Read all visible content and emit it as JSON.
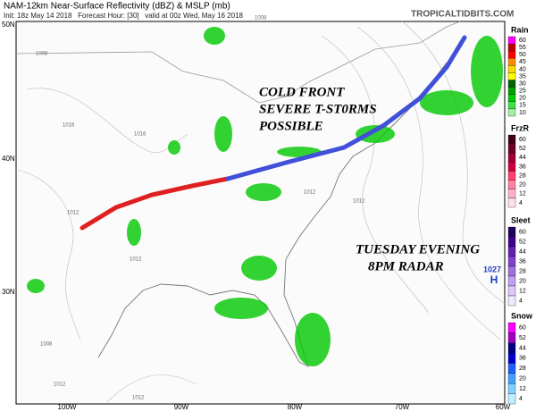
{
  "header": {
    "title": "NAM-12km Near-Surface Reflectivity (dBZ) & MSLP (mb)",
    "subtitle": "Init: 18z May 14 2018   Forecast Hour: [30]   valid at 00z Wed, May 16 2018",
    "site": "TROPICALTIDBITS.COM"
  },
  "map": {
    "lat_labels": [
      "50N",
      "40N",
      "30N"
    ],
    "lon_labels": [
      "100W",
      "90W",
      "80W",
      "70W",
      "60W"
    ],
    "annotations": [
      "COLD FRONT",
      "SEVERE T-ST0RMS",
      "POSSIBLE",
      "TUESDAY EVENING",
      "8PM RADAR"
    ],
    "high": {
      "pressure": "1027",
      "label": "H"
    },
    "isobar_labels": [
      "1008",
      "1012",
      "1016",
      "1016",
      "1012",
      "1012",
      "1008",
      "1012",
      "1012",
      "1008",
      "1012"
    ]
  },
  "legend": [
    {
      "name": "Rain",
      "ticks": [
        "60",
        "55",
        "50",
        "45",
        "40",
        "35",
        "30",
        "25",
        "20",
        "15",
        "10"
      ],
      "colors": [
        "#ff00ff",
        "#c00000",
        "#ff0000",
        "#ff8c00",
        "#ffd700",
        "#ffff00",
        "#006400",
        "#00a000",
        "#00c800",
        "#40e040",
        "#a0f0a0"
      ]
    },
    {
      "name": "FrzR",
      "ticks": [
        "60",
        "52",
        "44",
        "36",
        "28",
        "20",
        "12",
        "4"
      ],
      "colors": [
        "#400010",
        "#700020",
        "#a00030",
        "#d00040",
        "#ff4070",
        "#ff80a0",
        "#ffb0c8",
        "#ffe0ea"
      ]
    },
    {
      "name": "Sleet",
      "ticks": [
        "60",
        "52",
        "44",
        "36",
        "28",
        "20",
        "12",
        "4"
      ],
      "colors": [
        "#200060",
        "#400090",
        "#6020b0",
        "#8040d0",
        "#a070e0",
        "#c0a0f0",
        "#dcc8f8",
        "#f0e8ff"
      ]
    },
    {
      "name": "Snow",
      "ticks": [
        "60",
        "52",
        "44",
        "36",
        "28",
        "20",
        "12",
        "4"
      ],
      "colors": [
        "#ff00ff",
        "#a000c0",
        "#000080",
        "#0000d0",
        "#2060ff",
        "#40a0ff",
        "#80d0ff",
        "#c0f0ff"
      ]
    }
  ]
}
